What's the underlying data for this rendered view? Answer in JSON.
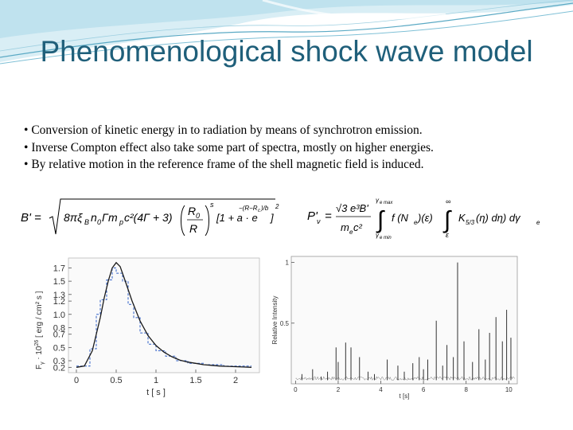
{
  "slide": {
    "title": "Phenomenological shock wave model",
    "bullets": [
      "Conversion of kinetic energy in to radiation by means of synchrotron emission.",
      "Inverse Compton effect also take some part of spectra, mostly on higher energies.",
      "By relative motion in the reference frame of the shell magnetic field is induced."
    ],
    "equations": {
      "b_field": {
        "lhs": "B' =",
        "body": "8πξ",
        "sub_b": "B",
        "mid": "n",
        "sub_0": "0",
        "gamma_mp": "Γm",
        "sub_p": "p",
        "c2": "c²(4Γ + 3)",
        "frac_top": "R",
        "frac_top_sub": "0",
        "frac_bottom": "R",
        "exp_s": "s",
        "tail": "[1 + a · e",
        "exp_tail": "−(R−R",
        "exp_tail_sub": "c",
        "exp_tail_end": ")/b",
        "close": "]",
        "close_exp": "2"
      },
      "power": {
        "lhs": "P'",
        "lhs_sub": "ν",
        "eq": "=",
        "num": "√3 e³B'",
        "den": "m",
        "den_sub": "e",
        "den_end": "c²",
        "int1_top": "γ",
        "int1_top_sub": "e max",
        "int1_bot": "γ",
        "int1_bot_sub": "e min",
        "integrand1": "f (N",
        "integrand1_sub": "e",
        "integrand1_end": ")(ε)",
        "int2_top": "∞",
        "int2_bot": "ε",
        "k": "K",
        "k_sub": "5/3",
        "k_end": "(η) dη) dγ",
        "k_end_sub": "e"
      }
    }
  },
  "chart_data": [
    {
      "type": "line",
      "xlabel": "t [ s ]",
      "ylabel": "F",
      "ylabel_sub": "γ",
      "ylabel_rest": " ⋅ 10",
      "ylabel_exp": "26",
      "ylabel_unit": " [ erg / cm² s ]",
      "xlim": [
        -0.1,
        2.3
      ],
      "ylim": [
        0.12,
        1.85
      ],
      "x_ticks": [
        0,
        0.5,
        1,
        1.5,
        2
      ],
      "x_tick_labels": [
        "0",
        "0.5",
        "1",
        "1.5",
        "2"
      ],
      "y_ticks": [
        0.2,
        0.3,
        0.5,
        0.7,
        0.8,
        1.0,
        1.2,
        1.3,
        1.5,
        1.7
      ],
      "y_tick_labels": [
        "0.2",
        "0.3",
        "0.5",
        "0.7",
        "0.8",
        "1.0",
        "1.2",
        "1.3",
        "1.5",
        "1.7"
      ],
      "series": [
        {
          "style": "dashed-step",
          "color": "#3060c8",
          "x": [
            0.0,
            0.17,
            0.17,
            0.25,
            0.25,
            0.3,
            0.3,
            0.38,
            0.38,
            0.45,
            0.45,
            0.5,
            0.5,
            0.58,
            0.58,
            0.65,
            0.65,
            0.72,
            0.72,
            0.8,
            0.8,
            0.9,
            0.9,
            1.0,
            1.0,
            1.12,
            1.12,
            1.25,
            1.25,
            1.4,
            1.4,
            1.6,
            1.6,
            1.85,
            1.85,
            2.2
          ],
          "y": [
            0.22,
            0.22,
            0.48,
            0.48,
            1.0,
            1.0,
            1.22,
            1.22,
            1.52,
            1.52,
            1.7,
            1.7,
            1.62,
            1.62,
            1.5,
            1.5,
            1.15,
            1.15,
            0.95,
            0.95,
            0.72,
            0.72,
            0.55,
            0.55,
            0.45,
            0.45,
            0.37,
            0.37,
            0.3,
            0.3,
            0.26,
            0.26,
            0.24,
            0.24,
            0.22,
            0.22
          ]
        },
        {
          "style": "solid",
          "color": "#1a1a1a",
          "x": [
            0.0,
            0.1,
            0.2,
            0.3,
            0.35,
            0.4,
            0.45,
            0.5,
            0.55,
            0.6,
            0.7,
            0.8,
            0.9,
            1.0,
            1.1,
            1.2,
            1.3,
            1.4,
            1.5,
            1.6,
            1.7,
            1.8,
            1.9,
            2.0,
            2.1,
            2.2
          ],
          "y": [
            0.2,
            0.22,
            0.45,
            0.95,
            1.25,
            1.5,
            1.7,
            1.78,
            1.72,
            1.55,
            1.2,
            0.9,
            0.68,
            0.53,
            0.43,
            0.36,
            0.31,
            0.28,
            0.26,
            0.24,
            0.23,
            0.22,
            0.215,
            0.21,
            0.205,
            0.2
          ]
        }
      ]
    },
    {
      "type": "line",
      "xlabel": "t [s]",
      "ylabel": "Relative Intensity",
      "xlim": [
        -0.2,
        10.4
      ],
      "ylim": [
        0,
        1.05
      ],
      "x_ticks": [
        0,
        2,
        4,
        6,
        8,
        10
      ],
      "x_tick_labels": [
        "0",
        "2",
        "4",
        "6",
        "8",
        "10"
      ],
      "y_ticks": [
        0.5,
        1
      ],
      "y_tick_labels": [
        "0.5",
        "1"
      ],
      "baseline": 0.03,
      "series": [
        {
          "style": "spikes",
          "color": "#333333",
          "x": [
            0.3,
            0.8,
            1.2,
            1.5,
            1.9,
            2.0,
            2.35,
            2.6,
            3.0,
            3.4,
            3.7,
            4.3,
            4.8,
            5.1,
            5.5,
            5.8,
            6.0,
            6.2,
            6.6,
            6.9,
            7.1,
            7.4,
            7.6,
            7.9,
            8.3,
            8.6,
            8.9,
            9.1,
            9.4,
            9.7,
            9.9,
            10.1
          ],
          "y": [
            0.08,
            0.12,
            0.06,
            0.1,
            0.3,
            0.18,
            0.34,
            0.3,
            0.22,
            0.1,
            0.08,
            0.2,
            0.15,
            0.1,
            0.17,
            0.22,
            0.12,
            0.2,
            0.52,
            0.15,
            0.32,
            0.22,
            1.0,
            0.35,
            0.18,
            0.45,
            0.2,
            0.42,
            0.55,
            0.35,
            0.61,
            0.38
          ]
        }
      ]
    }
  ]
}
